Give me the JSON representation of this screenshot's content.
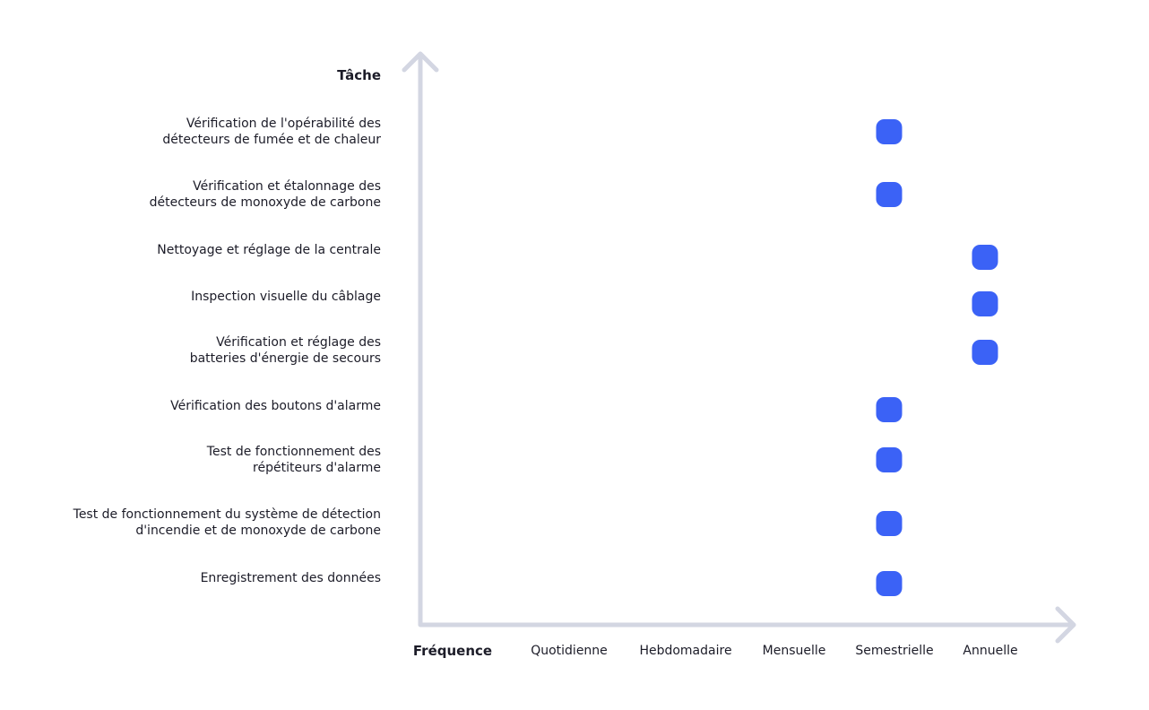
{
  "chart_data": {
    "type": "dot-matrix",
    "y_title": "Tâche",
    "x_title": "Fréquence",
    "x_categories": [
      "Quotidienne",
      "Hebdomadaire",
      "Mensuelle",
      "Semestrielle",
      "Annuelle"
    ],
    "categories": [
      "Vérification de l'opérabilité des\ndétecteurs de fumée et de chaleur",
      "Vérification et étalonnage des\ndétecteurs de monoxyde de carbone",
      "Nettoyage et réglage de la centrale",
      "Inspection visuelle du câblage",
      "Vérification et réglage des\nbatteries d'énergie de secours",
      "Vérification des boutons d'alarme",
      "Test de fonctionnement des\nrépétiteurs d'alarme",
      "Test de fonctionnement du système de détection\nd'incendie et de monoxyde de carbone",
      "Enregistrement des données"
    ],
    "values": [
      "Semestrielle",
      "Semestrielle",
      "Annuelle",
      "Annuelle",
      "Annuelle",
      "Semestrielle",
      "Semestrielle",
      "Semestrielle",
      "Semestrielle"
    ],
    "color": "#3b62f6"
  }
}
